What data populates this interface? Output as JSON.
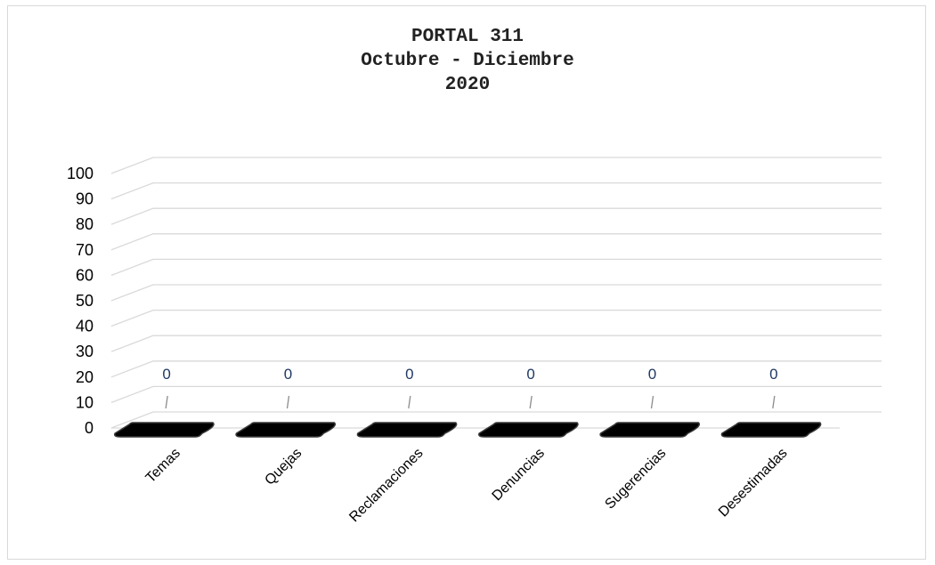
{
  "colors": {
    "grid": "#d9d9d9",
    "bar": "#000000",
    "label": "#1f3864",
    "leader": "#8c8c8c"
  },
  "chart_data": {
    "type": "bar",
    "title_lines": [
      "PORTAL 311",
      "Octubre - Diciembre",
      "2020"
    ],
    "categories": [
      "Temas",
      "Quejas",
      "Reclamaciones",
      "Denuncias",
      "Sugerencias",
      "Desestimadas"
    ],
    "values": [
      0,
      0,
      0,
      0,
      0,
      0
    ],
    "data_labels": [
      "0",
      "0",
      "0",
      "0",
      "0",
      "0"
    ],
    "yticks": [
      0,
      10,
      20,
      30,
      40,
      50,
      60,
      70,
      80,
      90,
      100
    ],
    "ylim": [
      0,
      100
    ],
    "grid": true,
    "legend": "none",
    "style": "3d-column"
  }
}
